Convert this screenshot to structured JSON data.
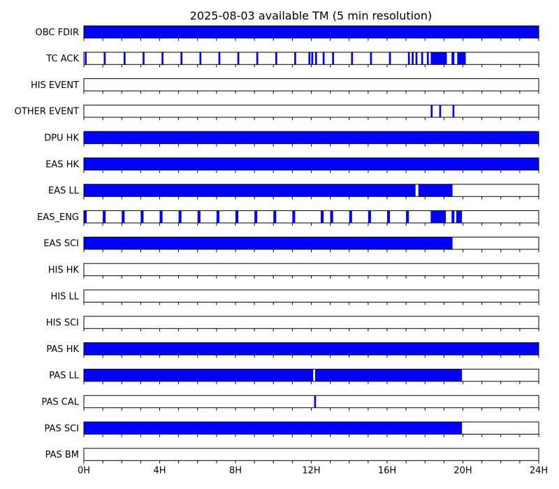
{
  "chart_data": {
    "type": "bar",
    "title": "2025-08-03 available TM (5 min resolution)",
    "bar_color": "#0000ff",
    "x_unit": "hours",
    "xlim": [
      0,
      24
    ],
    "x_ticks": [
      {
        "value": 0,
        "label": "0H"
      },
      {
        "value": 4,
        "label": "4H"
      },
      {
        "value": 8,
        "label": "8H"
      },
      {
        "value": 12,
        "label": "12H"
      },
      {
        "value": 16,
        "label": "16H"
      },
      {
        "value": 20,
        "label": "20H"
      },
      {
        "value": 24,
        "label": "24H"
      }
    ],
    "rows": [
      {
        "label": "OBC FDIR",
        "intervals": [
          [
            0,
            24
          ]
        ]
      },
      {
        "label": "TC ACK",
        "intervals": [
          [
            0.05,
            0.15
          ],
          [
            1.05,
            1.15
          ],
          [
            2.1,
            2.2
          ],
          [
            3.1,
            3.2
          ],
          [
            4.1,
            4.2
          ],
          [
            5.1,
            5.2
          ],
          [
            6.1,
            6.2
          ],
          [
            7.1,
            7.2
          ],
          [
            8.1,
            8.2
          ],
          [
            9.1,
            9.2
          ],
          [
            10.1,
            10.2
          ],
          [
            11.1,
            11.2
          ],
          [
            11.85,
            11.95
          ],
          [
            12.0,
            12.1
          ],
          [
            12.2,
            12.3
          ],
          [
            12.6,
            12.7
          ],
          [
            13.1,
            13.2
          ],
          [
            14.1,
            14.2
          ],
          [
            15.1,
            15.2
          ],
          [
            16.1,
            16.2
          ],
          [
            17.1,
            17.2
          ],
          [
            17.3,
            17.4
          ],
          [
            17.5,
            17.6
          ],
          [
            17.8,
            17.9
          ],
          [
            18.1,
            18.2
          ],
          [
            18.3,
            19.15
          ],
          [
            19.4,
            19.55
          ],
          [
            19.7,
            20.15
          ]
        ]
      },
      {
        "label": "HIS EVENT",
        "intervals": []
      },
      {
        "label": "OTHER EVENT",
        "intervals": [
          [
            18.3,
            18.4
          ],
          [
            18.75,
            18.85
          ],
          [
            19.45,
            19.55
          ]
        ]
      },
      {
        "label": "DPU HK",
        "intervals": [
          [
            0,
            24
          ]
        ]
      },
      {
        "label": "EAS HK",
        "intervals": [
          [
            0,
            24
          ]
        ]
      },
      {
        "label": "EAS LL",
        "intervals": [
          [
            0,
            17.5
          ],
          [
            17.65,
            19.45
          ]
        ]
      },
      {
        "label": "EAS_ENG",
        "intervals": [
          [
            0.0,
            0.15
          ],
          [
            1.0,
            1.15
          ],
          [
            2.0,
            2.15
          ],
          [
            3.0,
            3.15
          ],
          [
            4.0,
            4.15
          ],
          [
            5.0,
            5.15
          ],
          [
            6.0,
            6.15
          ],
          [
            7.0,
            7.15
          ],
          [
            8.0,
            8.15
          ],
          [
            9.0,
            9.15
          ],
          [
            10.0,
            10.15
          ],
          [
            11.0,
            11.15
          ],
          [
            12.5,
            12.65
          ],
          [
            13.0,
            13.15
          ],
          [
            14.0,
            14.15
          ],
          [
            15.0,
            15.15
          ],
          [
            16.0,
            16.15
          ],
          [
            17.0,
            17.15
          ],
          [
            18.3,
            19.1
          ],
          [
            19.4,
            19.55
          ],
          [
            19.65,
            19.95
          ]
        ]
      },
      {
        "label": "EAS SCI",
        "intervals": [
          [
            0,
            19.45
          ]
        ]
      },
      {
        "label": "HIS HK",
        "intervals": []
      },
      {
        "label": "HIS LL",
        "intervals": []
      },
      {
        "label": "HIS SCI",
        "intervals": []
      },
      {
        "label": "PAS HK",
        "intervals": [
          [
            0,
            24
          ]
        ]
      },
      {
        "label": "PAS LL",
        "intervals": [
          [
            0,
            12.1
          ],
          [
            12.2,
            19.95
          ]
        ]
      },
      {
        "label": "PAS CAL",
        "intervals": [
          [
            12.15,
            12.25
          ]
        ]
      },
      {
        "label": "PAS SCI",
        "intervals": [
          [
            0,
            19.95
          ]
        ]
      },
      {
        "label": "PAS BM",
        "intervals": []
      }
    ]
  }
}
